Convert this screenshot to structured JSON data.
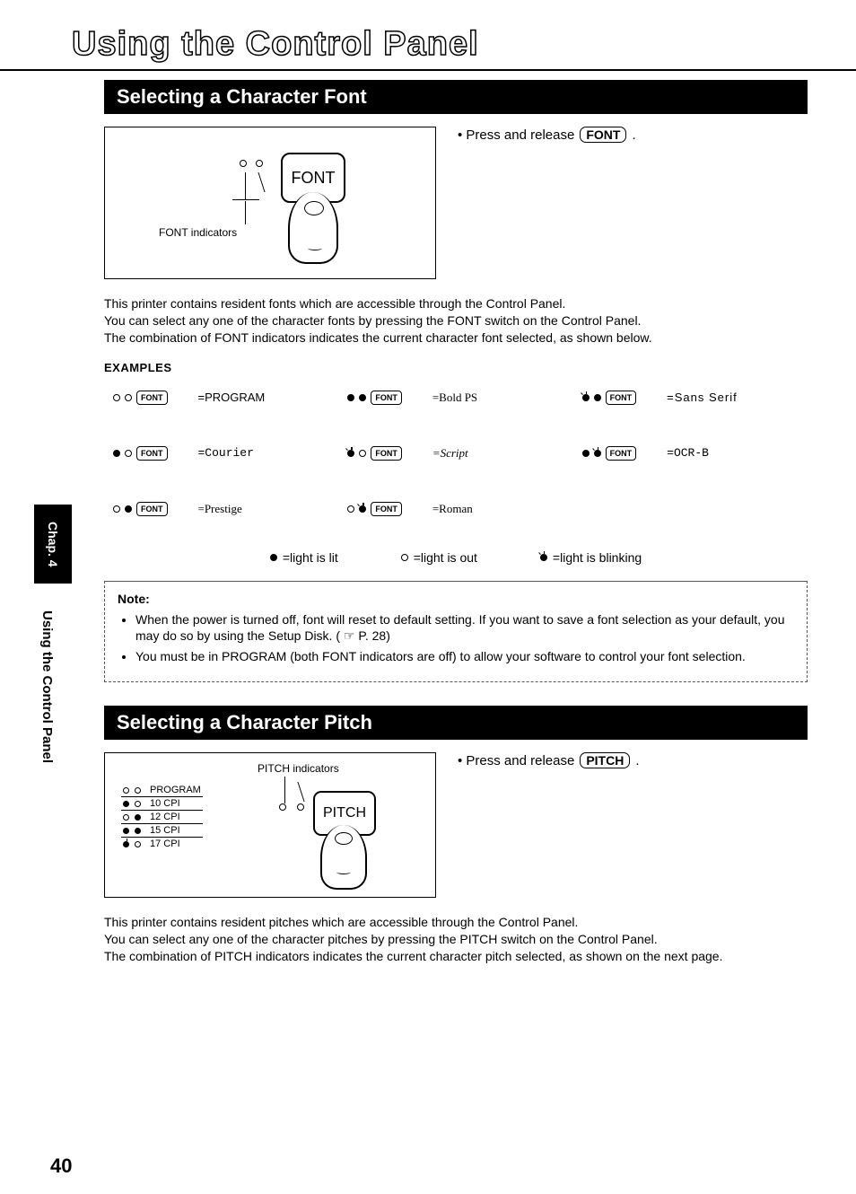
{
  "page": {
    "title": "Using the Control Panel",
    "number": "40",
    "sideTabChapter": "Chap. 4",
    "sideTabTitle": "Using the Control Panel"
  },
  "section1": {
    "heading": "Selecting a Character Font",
    "instructionPrefix": "• Press and release",
    "instructionKey": "FONT",
    "instructionSuffix": ".",
    "illus": {
      "keyLabel": "FONT",
      "indicatorLabel": "FONT indicators"
    },
    "body": "This printer contains resident fonts which are accessible through the Control Panel.\nYou can select any one of the character fonts by pressing the FONT switch on the Control Panel.\nThe combination of FONT indicators indicates the current character font selected, as shown below.",
    "examplesHeader": "EXAMPLES",
    "miniKeyLabel": "FONT",
    "examples": [
      {
        "ind1": "out",
        "ind2": "out",
        "label": "=PROGRAM",
        "cls": ""
      },
      {
        "ind1": "lit",
        "ind2": "lit",
        "label": "=Bold PS",
        "cls": "serif"
      },
      {
        "ind1": "blink",
        "ind2": "lit",
        "label": "=Sans Serif",
        "cls": "sans"
      },
      {
        "ind1": "lit",
        "ind2": "out",
        "label": "=Courier",
        "cls": "mono"
      },
      {
        "ind1": "blink",
        "ind2": "out",
        "label": "=Script",
        "cls": "script"
      },
      {
        "ind1": "lit",
        "ind2": "blink",
        "label": "=OCR-B",
        "cls": "mono"
      },
      {
        "ind1": "out",
        "ind2": "lit",
        "label": "=Prestige",
        "cls": "serif"
      },
      {
        "ind1": "out",
        "ind2": "blink",
        "label": "=Roman",
        "cls": "serif"
      }
    ],
    "legend": {
      "lit": "=light is lit",
      "out": "=light is out",
      "blink": "=light is blinking"
    },
    "note": {
      "header": "Note:",
      "items": [
        "When the power is turned off, font will reset to default setting. If you want to save a font selection as your default, you may do so by using the Setup Disk. ( ☞  P. 28)",
        "You must be in PROGRAM (both FONT indicators are off) to allow your software to control your font selection."
      ]
    }
  },
  "section2": {
    "heading": "Selecting a Character Pitch",
    "instructionPrefix": "• Press and release",
    "instructionKey": "PITCH",
    "instructionSuffix": ".",
    "illus": {
      "topLabel": "PITCH indicators",
      "keyLabel": "PITCH",
      "rows": [
        {
          "i1": "out",
          "i2": "out",
          "txt": "PROGRAM"
        },
        {
          "i1": "lit",
          "i2": "out",
          "txt": "10 CPI"
        },
        {
          "i1": "out",
          "i2": "lit",
          "txt": "12 CPI"
        },
        {
          "i1": "lit",
          "i2": "lit",
          "txt": "15 CPI"
        },
        {
          "i1": "blink",
          "i2": "out",
          "txt": "17 CPI"
        }
      ]
    },
    "body": "This printer contains resident pitches which are accessible through the Control Panel.\nYou can select any one of the character pitches by pressing the PITCH switch on the Control Panel.\nThe combination of PITCH indicators indicates the current character pitch selected, as shown on the next page."
  }
}
